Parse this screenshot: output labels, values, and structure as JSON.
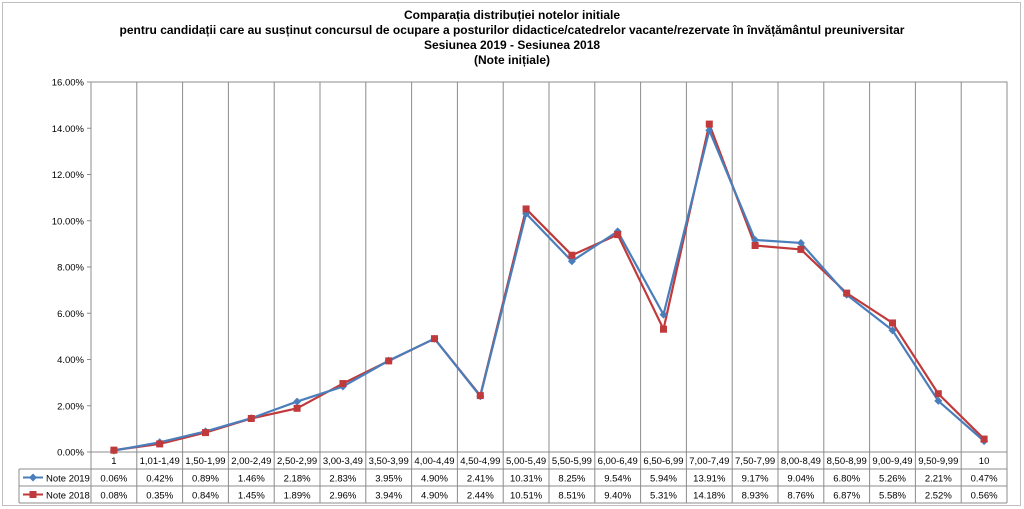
{
  "chart_data": {
    "type": "line",
    "title_lines": [
      "Comparația distribuției notelor initiale",
      "pentru candidații care au susținut concursul de ocupare a posturilor didactice/catedrelor vacante/rezervate în învățământul preuniversitar",
      "Sesiunea 2019 - Sesiunea 2018",
      "(Note inițiale)"
    ],
    "categories": [
      "1",
      "1,01-1,49",
      "1,50-1,99",
      "2,00-2,49",
      "2,50-2,99",
      "3,00-3,49",
      "3,50-3,99",
      "4,00-4,49",
      "4,50-4,99",
      "5,00-5,49",
      "5,50-5,99",
      "6,00-6,49",
      "6,50-6,99",
      "7,00-7,49",
      "7,50-7,99",
      "8,00-8,49",
      "8,50-8,99",
      "9,00-9,49",
      "9,50-9,99",
      "10"
    ],
    "y_ticks": [
      "0.00%",
      "2.00%",
      "4.00%",
      "6.00%",
      "8.00%",
      "10.00%",
      "12.00%",
      "14.00%",
      "16.00%"
    ],
    "ylim": [
      0,
      16
    ],
    "grid": "vertical category lines",
    "legend": "data table",
    "series": [
      {
        "name": "Note 2019",
        "color": "#4a7ebb",
        "marker": "diamond",
        "values": [
          0.06,
          0.42,
          0.89,
          1.46,
          2.18,
          2.83,
          3.95,
          4.9,
          2.41,
          10.31,
          8.25,
          9.54,
          5.94,
          13.91,
          9.17,
          9.04,
          6.8,
          5.26,
          2.21,
          0.47
        ],
        "labels": [
          "0.06%",
          "0.42%",
          "0.89%",
          "1.46%",
          "2.18%",
          "2.83%",
          "3.95%",
          "4.90%",
          "2.41%",
          "10.31%",
          "8.25%",
          "9.54%",
          "5.94%",
          "13.91%",
          "9.17%",
          "9.04%",
          "6.80%",
          "5.26%",
          "2.21%",
          "0.47%"
        ]
      },
      {
        "name": "Note 2018",
        "color": "#c0393b",
        "marker": "square",
        "values": [
          0.08,
          0.35,
          0.84,
          1.45,
          1.89,
          2.96,
          3.94,
          4.9,
          2.44,
          10.51,
          8.51,
          9.4,
          5.31,
          14.18,
          8.93,
          8.76,
          6.87,
          5.58,
          2.52,
          0.56
        ],
        "labels": [
          "0.08%",
          "0.35%",
          "0.84%",
          "1.45%",
          "1.89%",
          "2.96%",
          "3.94%",
          "4.90%",
          "2.44%",
          "10.51%",
          "8.51%",
          "9.40%",
          "5.31%",
          "14.18%",
          "8.93%",
          "8.76%",
          "6.87%",
          "5.58%",
          "2.52%",
          "0.56%"
        ]
      }
    ]
  }
}
